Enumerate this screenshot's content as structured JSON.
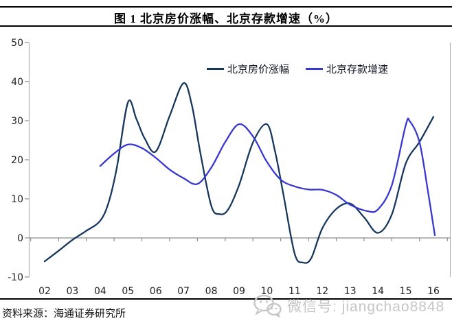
{
  "header": {
    "title": "图 1  北京房价涨幅、北京存款增速（%）"
  },
  "footer": {
    "source": "资料来源：海通证券研究所"
  },
  "watermark": {
    "icon": "wechat-icon",
    "text": "微信号: jiangchao8848"
  },
  "colors": {
    "series1": "#16365c",
    "series2": "#3838cf",
    "axis_line": "#8c8c8c",
    "plot_border": "#b3b3b3",
    "tick_text": "#222222",
    "watermark_gray": "#c6c6c6",
    "divider_black": "#000000"
  },
  "chart_data": {
    "type": "line",
    "title": "图 1  北京房价涨幅、北京存款增速（%）",
    "xlabel": "",
    "ylabel": "",
    "ylim": [
      -10,
      50
    ],
    "xlim_years": [
      2001.5,
      2016.5
    ],
    "grid": false,
    "legend_position": "top-center",
    "y_ticks": [
      -10,
      0,
      10,
      20,
      30,
      40,
      50
    ],
    "y_tick_labels": [
      "-10",
      "0",
      "10",
      "20",
      "30",
      "40",
      "50"
    ],
    "x_tick_labels": [
      "02",
      "03",
      "04",
      "05",
      "06",
      "07",
      "08",
      "09",
      "10",
      "11",
      "12",
      "13",
      "14",
      "15",
      "16"
    ],
    "series": [
      {
        "name": "北京房价涨幅",
        "color": "#16365c",
        "points": [
          [
            2002,
            -6
          ],
          [
            2002.5,
            -3.3
          ],
          [
            2003,
            -0.5
          ],
          [
            2003.5,
            1.8
          ],
          [
            2004,
            4.4
          ],
          [
            2004.3,
            9
          ],
          [
            2004.6,
            18
          ],
          [
            2005,
            34.7
          ],
          [
            2005.3,
            30.5
          ],
          [
            2005.6,
            25.5
          ],
          [
            2006,
            22.1
          ],
          [
            2006.5,
            31.2
          ],
          [
            2007,
            39.6
          ],
          [
            2007.3,
            34
          ],
          [
            2007.6,
            22
          ],
          [
            2008,
            8.2
          ],
          [
            2008.3,
            6.1
          ],
          [
            2008.6,
            7.2
          ],
          [
            2009,
            13.5
          ],
          [
            2009.5,
            24.4
          ],
          [
            2010,
            29.1
          ],
          [
            2010.3,
            22
          ],
          [
            2010.6,
            11
          ],
          [
            2011,
            -4
          ],
          [
            2011.3,
            -6.3
          ],
          [
            2011.6,
            -5.2
          ],
          [
            2012,
            2.5
          ],
          [
            2012.5,
            7.4
          ],
          [
            2013,
            8.8
          ],
          [
            2013.5,
            5.3
          ],
          [
            2014,
            1.3
          ],
          [
            2014.5,
            6
          ],
          [
            2015,
            19
          ],
          [
            2015.5,
            24.6
          ],
          [
            2016,
            31
          ]
        ]
      },
      {
        "name": "北京存款增速",
        "color": "#3838cf",
        "points": [
          [
            2004,
            18.4
          ],
          [
            2004.5,
            21.6
          ],
          [
            2005,
            23.9
          ],
          [
            2005.5,
            23
          ],
          [
            2006,
            20.5
          ],
          [
            2006.5,
            17.5
          ],
          [
            2007,
            15.3
          ],
          [
            2007.5,
            13.8
          ],
          [
            2008,
            18
          ],
          [
            2008.5,
            24.5
          ],
          [
            2009,
            29.1
          ],
          [
            2009.5,
            26
          ],
          [
            2010,
            19.5
          ],
          [
            2010.5,
            14.9
          ],
          [
            2011,
            13.2
          ],
          [
            2011.5,
            12.4
          ],
          [
            2012,
            12.3
          ],
          [
            2012.5,
            11
          ],
          [
            2013,
            8.5
          ],
          [
            2013.6,
            6.9
          ],
          [
            2014,
            7.3
          ],
          [
            2014.5,
            13.5
          ],
          [
            2015,
            28.8
          ],
          [
            2015.15,
            29.8
          ],
          [
            2015.5,
            24.4
          ],
          [
            2015.8,
            12
          ],
          [
            2016.05,
            0.7
          ]
        ]
      }
    ]
  }
}
